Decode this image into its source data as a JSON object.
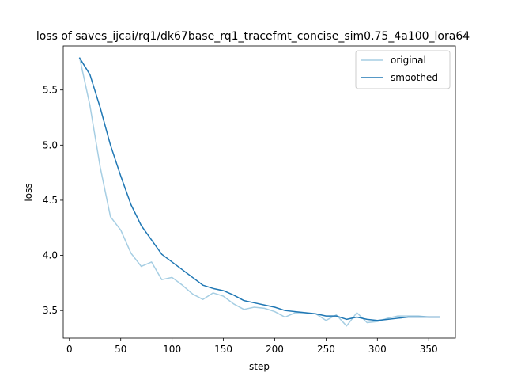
{
  "chart_data": {
    "type": "line",
    "title": "loss of saves_ijcai/rq1/dk67base_rq1_tracefmt_concise_sim0.75_4a100_lora64",
    "xlabel": "step",
    "ylabel": "loss",
    "xlim": [
      -6,
      376
    ],
    "ylim": [
      3.25,
      5.9
    ],
    "xticks": [
      0,
      50,
      100,
      150,
      200,
      250,
      300,
      350
    ],
    "yticks": [
      3.5,
      4.0,
      4.5,
      5.0,
      5.5
    ],
    "ytick_labels": [
      "3.5",
      "4.0",
      "4.5",
      "5.0",
      "5.5"
    ],
    "grid": false,
    "legend_position": "upper-right",
    "x": [
      10,
      20,
      30,
      40,
      50,
      60,
      70,
      80,
      90,
      100,
      110,
      120,
      130,
      140,
      150,
      160,
      170,
      180,
      190,
      200,
      210,
      220,
      230,
      240,
      250,
      260,
      270,
      280,
      290,
      300,
      310,
      320,
      330,
      340,
      350,
      360
    ],
    "series": [
      {
        "name": "original",
        "color": "#a6cee3",
        "values": [
          5.79,
          5.36,
          4.8,
          4.35,
          4.23,
          4.02,
          3.9,
          3.94,
          3.78,
          3.8,
          3.73,
          3.65,
          3.6,
          3.66,
          3.63,
          3.56,
          3.51,
          3.53,
          3.52,
          3.49,
          3.44,
          3.48,
          3.48,
          3.47,
          3.41,
          3.46,
          3.36,
          3.48,
          3.39,
          3.4,
          3.43,
          3.45,
          3.45,
          3.45,
          3.44,
          3.44
        ]
      },
      {
        "name": "smoothed",
        "color": "#1f77b4",
        "values": [
          5.79,
          5.64,
          5.34,
          5.0,
          4.72,
          4.46,
          4.27,
          4.14,
          4.01,
          3.94,
          3.87,
          3.8,
          3.73,
          3.7,
          3.68,
          3.64,
          3.59,
          3.57,
          3.55,
          3.53,
          3.5,
          3.49,
          3.48,
          3.47,
          3.45,
          3.45,
          3.42,
          3.44,
          3.42,
          3.41,
          3.42,
          3.43,
          3.44,
          3.44,
          3.44,
          3.44
        ]
      }
    ]
  }
}
